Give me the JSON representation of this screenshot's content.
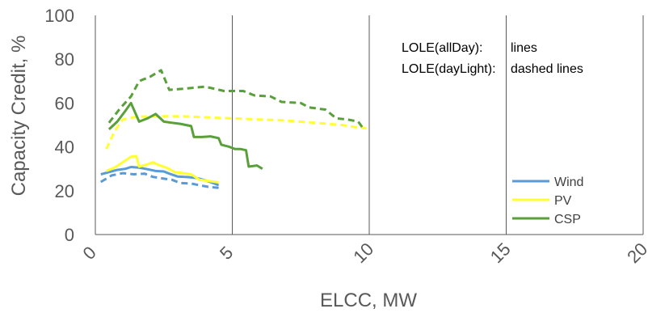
{
  "chart_data": {
    "type": "line",
    "title": "",
    "xlabel": "ELCC, MW",
    "ylabel": "Capacity Credit, %",
    "xlim": [
      0,
      20
    ],
    "ylim": [
      0,
      100
    ],
    "x_ticks": [
      "0",
      "5",
      "10",
      "15",
      "20"
    ],
    "y_ticks": [
      "0",
      "20",
      "40",
      "60",
      "80",
      "100"
    ],
    "grid": {
      "vertical": true,
      "horizontal": false
    },
    "legend_position": "bottom-right",
    "annotations": [
      {
        "text_label": "LOLE(allDay):",
        "text_value": "lines"
      },
      {
        "text_label": "LOLE(dayLight):",
        "text_value": "dashed lines"
      }
    ],
    "series": [
      {
        "name": "Wind",
        "style": "solid",
        "color": "#5b9bd5",
        "points": [
          [
            0.2,
            27.5
          ],
          [
            0.5,
            28.5
          ],
          [
            0.8,
            29.5
          ],
          [
            1.1,
            30.0
          ],
          [
            1.3,
            30.8
          ],
          [
            1.6,
            30.5
          ],
          [
            1.9,
            29.8
          ],
          [
            2.2,
            29.0
          ],
          [
            2.5,
            28.8
          ],
          [
            2.7,
            27.8
          ],
          [
            3.0,
            26.5
          ],
          [
            3.4,
            26.2
          ],
          [
            3.7,
            25.8
          ],
          [
            4.0,
            24.8
          ],
          [
            4.3,
            23.5
          ],
          [
            4.5,
            22.5
          ]
        ]
      },
      {
        "name": "Wind",
        "style": "dashed",
        "color": "#5b9bd5",
        "points": [
          [
            0.2,
            24.0
          ],
          [
            0.6,
            27.0
          ],
          [
            1.0,
            28.0
          ],
          [
            1.4,
            27.5
          ],
          [
            1.8,
            27.8
          ],
          [
            2.1,
            26.3
          ],
          [
            2.5,
            25.5
          ],
          [
            2.8,
            25.0
          ],
          [
            3.1,
            23.5
          ],
          [
            3.5,
            23.3
          ],
          [
            3.8,
            22.5
          ],
          [
            4.1,
            21.8
          ],
          [
            4.5,
            21.3
          ]
        ]
      },
      {
        "name": "PV",
        "style": "solid",
        "color": "#ffff33",
        "points": [
          [
            0.4,
            29.0
          ],
          [
            0.7,
            30.5
          ],
          [
            1.0,
            33.0
          ],
          [
            1.3,
            35.5
          ],
          [
            1.5,
            35.8
          ],
          [
            1.6,
            31.0
          ],
          [
            1.9,
            32.0
          ],
          [
            2.1,
            33.0
          ],
          [
            2.3,
            31.8
          ],
          [
            2.6,
            30.5
          ],
          [
            2.9,
            28.5
          ],
          [
            3.2,
            28.0
          ],
          [
            3.5,
            27.5
          ],
          [
            3.8,
            25.0
          ],
          [
            4.1,
            24.5
          ],
          [
            4.4,
            24.0
          ],
          [
            4.5,
            23.8
          ]
        ]
      },
      {
        "name": "PV",
        "style": "dashed",
        "color": "#ffff33",
        "points": [
          [
            0.4,
            39.0
          ],
          [
            0.7,
            47.0
          ],
          [
            1.0,
            52.5
          ],
          [
            1.4,
            53.5
          ],
          [
            2.0,
            54.0
          ],
          [
            2.6,
            54.0
          ],
          [
            3.2,
            54.0
          ],
          [
            4.0,
            53.5
          ],
          [
            5.0,
            53.0
          ],
          [
            6.0,
            52.5
          ],
          [
            7.0,
            52.0
          ],
          [
            8.0,
            51.0
          ],
          [
            9.0,
            50.0
          ],
          [
            9.5,
            49.0
          ],
          [
            9.9,
            48.5
          ]
        ]
      },
      {
        "name": "CSP",
        "style": "solid",
        "color": "#59a03a",
        "points": [
          [
            0.5,
            48.0
          ],
          [
            0.8,
            51.5
          ],
          [
            1.1,
            56.5
          ],
          [
            1.3,
            60.0
          ],
          [
            1.6,
            51.5
          ],
          [
            1.9,
            53.0
          ],
          [
            2.2,
            55.0
          ],
          [
            2.5,
            51.5
          ],
          [
            2.8,
            51.0
          ],
          [
            3.1,
            50.5
          ],
          [
            3.3,
            50.0
          ],
          [
            3.5,
            49.5
          ],
          [
            3.6,
            44.5
          ],
          [
            3.9,
            44.5
          ],
          [
            4.2,
            44.8
          ],
          [
            4.5,
            44.0
          ],
          [
            4.6,
            41.0
          ],
          [
            4.9,
            40.0
          ],
          [
            5.1,
            39.0
          ],
          [
            5.3,
            39.0
          ],
          [
            5.5,
            38.5
          ],
          [
            5.6,
            31.0
          ],
          [
            5.9,
            31.5
          ],
          [
            6.1,
            30.0
          ]
        ]
      },
      {
        "name": "CSP",
        "style": "dashed",
        "color": "#59a03a",
        "points": [
          [
            0.5,
            51.0
          ],
          [
            0.9,
            57.5
          ],
          [
            1.3,
            63.0
          ],
          [
            1.6,
            70.0
          ],
          [
            2.0,
            72.0
          ],
          [
            2.4,
            75.0
          ],
          [
            2.7,
            66.0
          ],
          [
            3.2,
            66.5
          ],
          [
            4.0,
            67.5
          ],
          [
            4.7,
            65.5
          ],
          [
            5.4,
            65.5
          ],
          [
            5.8,
            63.5
          ],
          [
            6.4,
            63.0
          ],
          [
            6.8,
            60.5
          ],
          [
            7.5,
            60.0
          ],
          [
            7.8,
            58.0
          ],
          [
            8.4,
            57.0
          ],
          [
            8.8,
            53.0
          ],
          [
            9.2,
            52.5
          ],
          [
            9.6,
            51.5
          ],
          [
            9.8,
            48.0
          ]
        ]
      }
    ],
    "legend": [
      {
        "name": "Wind",
        "color": "#5b9bd5"
      },
      {
        "name": "PV",
        "color": "#ffff33"
      },
      {
        "name": "CSP",
        "color": "#59a03a"
      }
    ]
  }
}
